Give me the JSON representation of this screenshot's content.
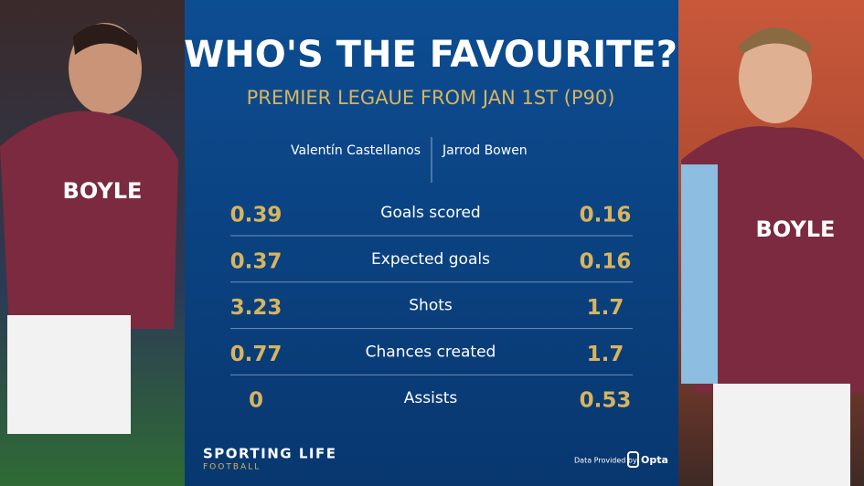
{
  "title": "WHO'S THE FAVOURITE?",
  "subtitle": "PREMIER LEGAUE FROM JAN 1ST (P90)",
  "players": [
    "Valentín Castellanos",
    "Jarrod Bowen"
  ],
  "rows": [
    {
      "stat": "Goals scored",
      "left": 0.39,
      "right": 0.16
    },
    {
      "stat": "Expected goals",
      "left": 0.37,
      "right": 0.16
    },
    {
      "stat": "Shots",
      "left": 3.23,
      "right": 1.7
    },
    {
      "stat": "Chances created",
      "left": 0.77,
      "right": 1.7
    },
    {
      "stat": "Assists",
      "left": 0,
      "right": 0.53
    }
  ],
  "footer": {
    "brand": "SPORTING LIFE",
    "sub": "FOOTBALL",
    "credit": "Data Provided by",
    "provider": "Opta"
  }
}
